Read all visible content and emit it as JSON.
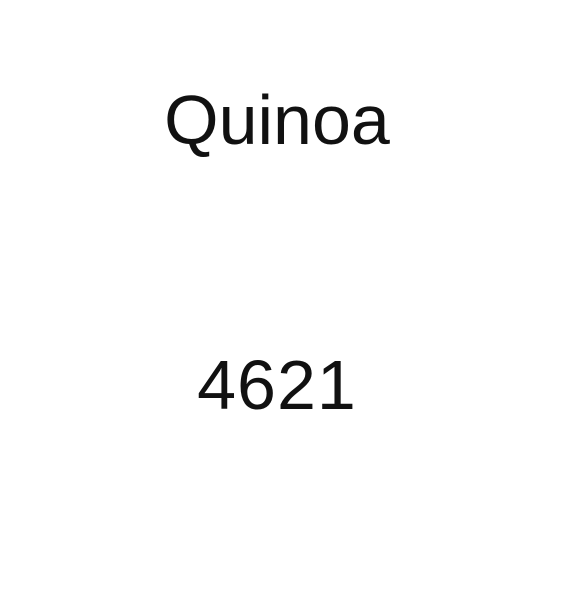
{
  "item": {
    "name": "Quinoa",
    "code": "4621"
  }
}
